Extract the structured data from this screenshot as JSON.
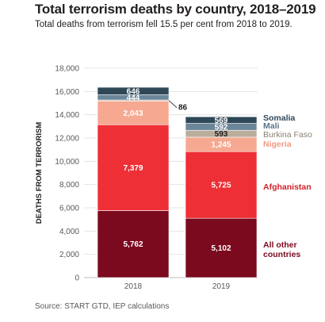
{
  "header": {
    "title": "Total terrorism deaths by country, 2018–2019",
    "subtitle": "Total deaths from terrorism fell 15.5 per cent from 2018 to 2019."
  },
  "source": "Source: START GTD, IEP calculations",
  "chart_data": {
    "type": "bar",
    "stacked": true,
    "categories": [
      "2018",
      "2019"
    ],
    "ylabel": "DEATHS FROM TERRORISM",
    "ylim": [
      0,
      18000
    ],
    "yticks": [
      "0",
      "2,000",
      "4,000",
      "6,000",
      "8,000",
      "10,000",
      "12,000",
      "14,000",
      "16,000",
      "18,000"
    ],
    "grid": true,
    "legend_position": "right of 2019 bar",
    "series": [
      {
        "name": "All other countries",
        "legend_lines": [
          "All other",
          "countries"
        ],
        "color": "#7b0a1f",
        "label_color": "#ffffff",
        "legend_color": "#7b0a1f",
        "values": [
          5762,
          5102
        ],
        "labels": [
          "5,762",
          "5,102"
        ]
      },
      {
        "name": "Afghanistan",
        "legend_lines": [
          "Afghanistan"
        ],
        "color": "#ee2f36",
        "label_color": "#ffffff",
        "legend_color": "#d2232a",
        "values": [
          7379,
          5725
        ],
        "labels": [
          "7,379",
          "5,725"
        ]
      },
      {
        "name": "Nigeria",
        "legend_lines": [
          "Nigeria"
        ],
        "color": "#f6a891",
        "label_color": "#ffffff",
        "legend_color": "#f29a82",
        "values": [
          2043,
          1245
        ],
        "labels": [
          "2,043",
          "1,245"
        ]
      },
      {
        "name": "Burkina Faso",
        "legend_lines": [
          "Burkina Faso"
        ],
        "color": "#b9ad9c",
        "label_color": "#231f20",
        "legend_color": "#8a8075",
        "values": [
          86,
          593
        ],
        "labels": [
          "86",
          "593"
        ]
      },
      {
        "name": "Mali",
        "legend_lines": [
          "Mali"
        ],
        "color": "#6c8699",
        "label_color": "#ffffff",
        "legend_color": "#5a7486",
        "values": [
          444,
          592
        ],
        "labels": [
          "444",
          "592"
        ]
      },
      {
        "name": "Somalia",
        "legend_lines": [
          "Somalia"
        ],
        "color": "#2f4858",
        "label_color": "#ffffff",
        "legend_color": "#2f4858",
        "values": [
          646,
          569
        ],
        "labels": [
          "646",
          "569"
        ]
      }
    ]
  }
}
